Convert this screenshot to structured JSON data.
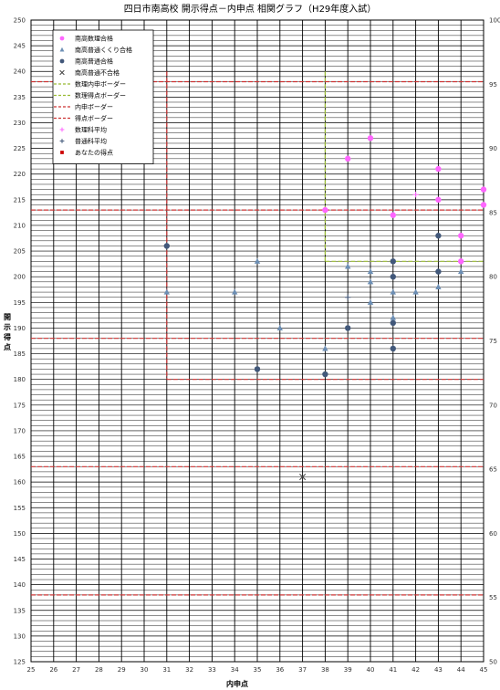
{
  "chart_data": {
    "type": "scatter",
    "title": "四日市南高校 開示得点－内申点 相関グラフ（H29年度入試）",
    "xlabel": "内申点",
    "ylabel": "開示得点",
    "xlim": [
      25,
      45
    ],
    "ylim": [
      125,
      250
    ],
    "y2lim": [
      50,
      100
    ],
    "x_ticks": [
      "25",
      "26",
      "27",
      "28",
      "29",
      "30",
      "31",
      "32",
      "33",
      "34",
      "35",
      "36",
      "37",
      "38",
      "39",
      "40",
      "41",
      "42",
      "43",
      "44",
      "45"
    ],
    "y_ticks": [
      "125",
      "130",
      "135",
      "140",
      "145",
      "150",
      "155",
      "160",
      "165",
      "170",
      "175",
      "180",
      "185",
      "190",
      "195",
      "200",
      "205",
      "210",
      "215",
      "220",
      "225",
      "230",
      "235",
      "240",
      "245",
      "250"
    ],
    "y2_ticks": [
      "50",
      "55",
      "60",
      "65",
      "70",
      "75",
      "80",
      "85",
      "90",
      "95",
      "100"
    ],
    "grid": true,
    "legend_position": "top-left",
    "series": [
      {
        "name": "南高数理合格",
        "marker": "dot",
        "color": "#ff66ff",
        "points": [
          [
            38,
            213
          ],
          [
            39,
            223
          ],
          [
            40,
            227
          ],
          [
            41,
            212
          ],
          [
            43,
            221
          ],
          [
            43,
            215
          ],
          [
            44,
            208
          ],
          [
            44,
            203
          ],
          [
            45,
            217
          ],
          [
            45,
            214
          ]
        ]
      },
      {
        "name": "南高普通くくり合格",
        "marker": "triangle",
        "color": "#6d8fb5",
        "points": [
          [
            31,
            197
          ],
          [
            34,
            197
          ],
          [
            35,
            203
          ],
          [
            36,
            190
          ],
          [
            38,
            186
          ],
          [
            39,
            202
          ],
          [
            40,
            201
          ],
          [
            40,
            199
          ],
          [
            40,
            195
          ],
          [
            41,
            197
          ],
          [
            41,
            192
          ],
          [
            42,
            197
          ],
          [
            43,
            198
          ],
          [
            44,
            201
          ]
        ]
      },
      {
        "name": "南高普通合格",
        "marker": "dot",
        "color": "#42587a",
        "points": [
          [
            31,
            206
          ],
          [
            35,
            182
          ],
          [
            38,
            181
          ],
          [
            39,
            190
          ],
          [
            41,
            203
          ],
          [
            41,
            200
          ],
          [
            41,
            191
          ],
          [
            41,
            186
          ],
          [
            43,
            208
          ],
          [
            43,
            201
          ]
        ]
      },
      {
        "name": "南高普通不合格",
        "marker": "x",
        "color": "#444444",
        "points": [
          [
            37,
            161
          ]
        ]
      },
      {
        "name": "数理内申ボーダー",
        "marker": "line-dash",
        "color": "#99bb33",
        "lines": [
          [
            [
              38,
              240
            ],
            [
              38,
              203
            ]
          ]
        ]
      },
      {
        "name": "数理得点ボーダー",
        "marker": "line-dash",
        "color": "#99bb33",
        "lines": [
          [
            [
              38,
              203
            ],
            [
              45,
              203
            ]
          ]
        ]
      },
      {
        "name": "内申ボーダー",
        "marker": "line-dash",
        "color": "#cc3333",
        "lines": [
          [
            [
              31,
              240
            ],
            [
              31,
              180
            ]
          ]
        ]
      },
      {
        "name": "得点ボーダー",
        "marker": "line-dash",
        "color": "#cc3333",
        "lines": [
          [
            [
              31,
              180
            ],
            [
              45,
              180
            ]
          ],
          [
            [
              25,
              238
            ],
            [
              45,
              238
            ]
          ],
          [
            [
              25,
              213
            ],
            [
              45,
              213
            ]
          ],
          [
            [
              25,
              188
            ],
            [
              45,
              188
            ]
          ],
          [
            [
              25,
              163
            ],
            [
              45,
              163
            ]
          ],
          [
            [
              25,
              138
            ],
            [
              45,
              138
            ]
          ]
        ]
      },
      {
        "name": "数理科平均",
        "marker": "plus",
        "color": "#ff66ff",
        "points": [
          [
            42,
            216
          ]
        ]
      },
      {
        "name": "普通科平均",
        "marker": "plus",
        "color": "#42587a",
        "points": [
          [
            39,
            196
          ]
        ]
      },
      {
        "name": "あなたの得点",
        "marker": "square",
        "color": "#cc0000",
        "points": []
      }
    ]
  }
}
